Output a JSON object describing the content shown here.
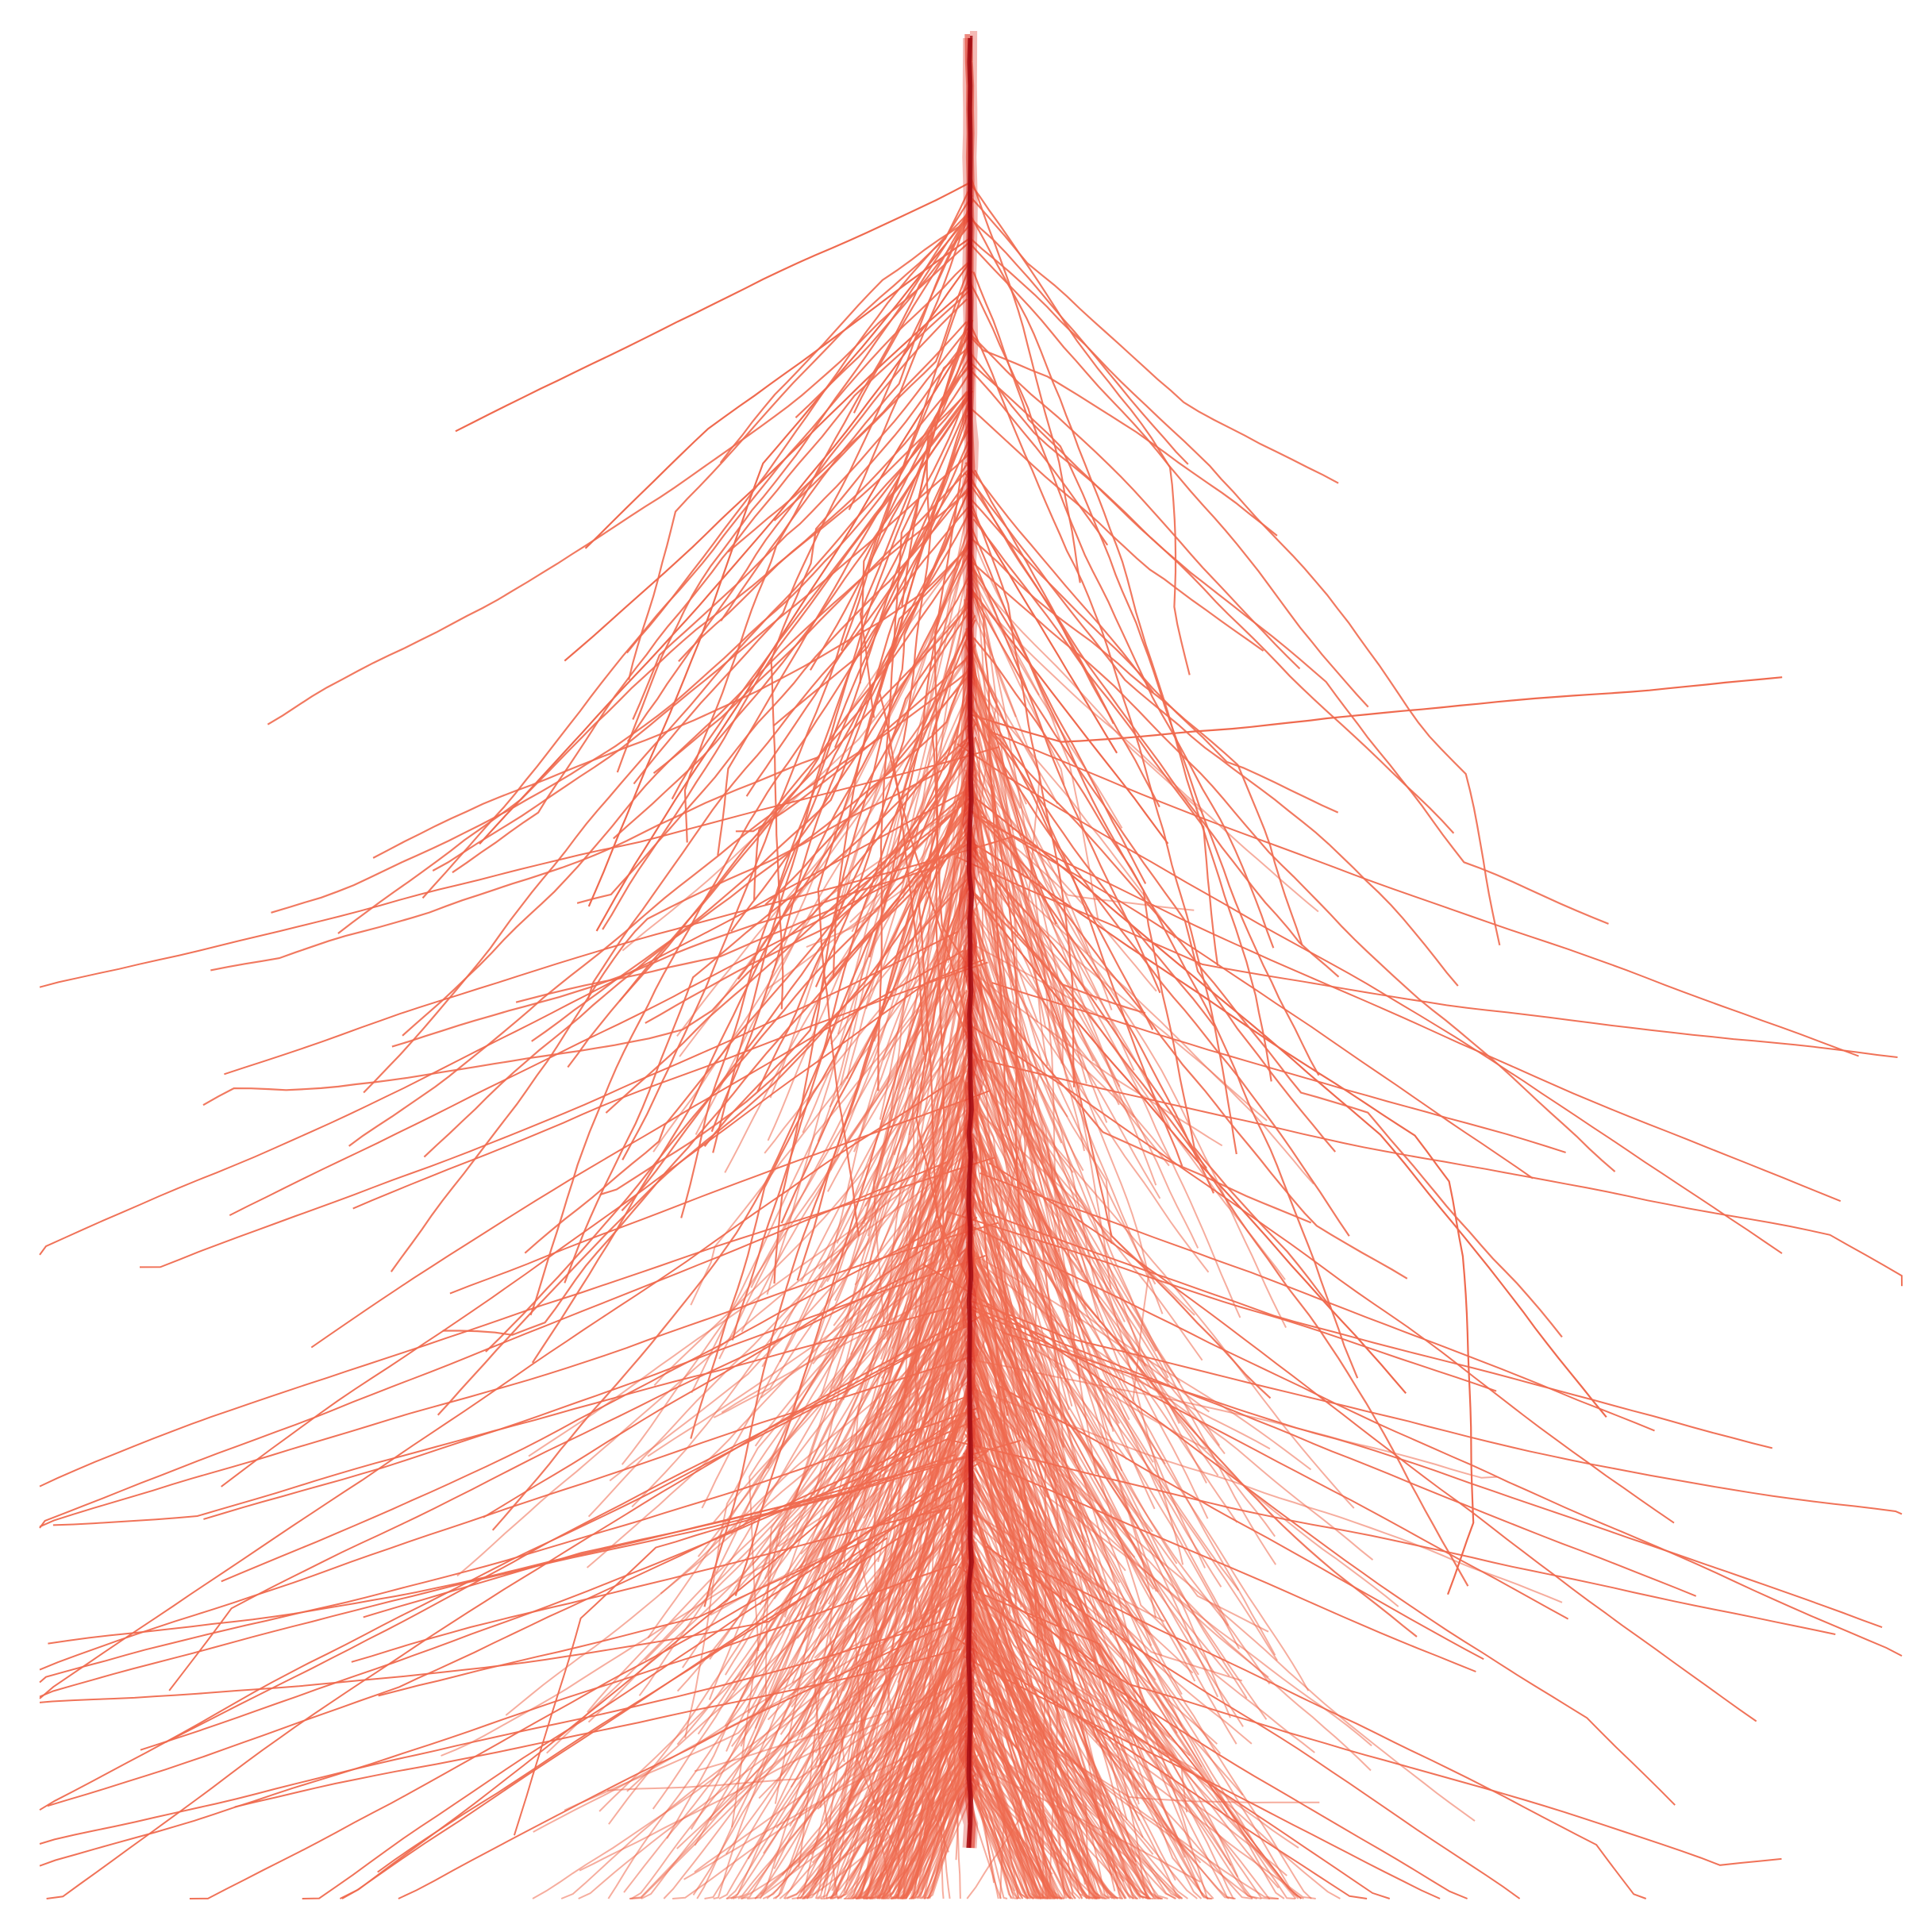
{
  "image": {
    "subject": "particle-shower-traces",
    "background_color": "#ffffff",
    "stroke_color": "#ef6a4f",
    "core_color": "#a50f15",
    "mid_color": "#e03a2a"
  }
}
